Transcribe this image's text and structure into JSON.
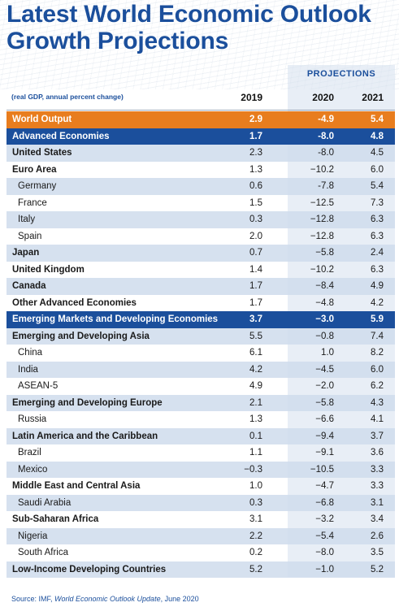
{
  "title_line1": "Latest World Economic Outlook",
  "title_line2": "Growth Projections",
  "projections_label": "PROJECTIONS",
  "note": "(real GDP, annual percent change)",
  "columns": [
    "2019",
    "2020",
    "2021"
  ],
  "rows": [
    {
      "label": "World Output",
      "v2019": "2.9",
      "v2020": "-4.9",
      "v2021": "5.4",
      "style": "orange"
    },
    {
      "label": "Advanced Economies",
      "v2019": "1.7",
      "v2020": "-8.0",
      "v2021": "4.8",
      "style": "navy"
    },
    {
      "label": "United States",
      "v2019": "2.3",
      "v2020": "-8.0",
      "v2021": "4.5",
      "style": "group-alt"
    },
    {
      "label": "Euro Area",
      "v2019": "1.3",
      "v2020": "−10.2",
      "v2021": "6.0",
      "style": "group-white"
    },
    {
      "label": "Germany",
      "v2019": "0.6",
      "v2020": "-7.8",
      "v2021": "5.4",
      "style": "sub-alt"
    },
    {
      "label": "France",
      "v2019": "1.5",
      "v2020": "−12.5",
      "v2021": "7.3",
      "style": "sub-white"
    },
    {
      "label": "Italy",
      "v2019": "0.3",
      "v2020": "−12.8",
      "v2021": "6.3",
      "style": "sub-alt"
    },
    {
      "label": "Spain",
      "v2019": "2.0",
      "v2020": "−12.8",
      "v2021": "6.3",
      "style": "sub-white"
    },
    {
      "label": "Japan",
      "v2019": "0.7",
      "v2020": "−5.8",
      "v2021": "2.4",
      "style": "group-alt"
    },
    {
      "label": "United Kingdom",
      "v2019": "1.4",
      "v2020": "−10.2",
      "v2021": "6.3",
      "style": "group-white"
    },
    {
      "label": "Canada",
      "v2019": "1.7",
      "v2020": "−8.4",
      "v2021": "4.9",
      "style": "group-alt"
    },
    {
      "label": "Other Advanced Economies",
      "v2019": "1.7",
      "v2020": "−4.8",
      "v2021": "4.2",
      "style": "group-white"
    },
    {
      "label": "Emerging Markets and Developing Economies",
      "v2019": "3.7",
      "v2020": "−3.0",
      "v2021": "5.9",
      "style": "navy"
    },
    {
      "label": "Emerging and Developing Asia",
      "v2019": "5.5",
      "v2020": "−0.8",
      "v2021": "7.4",
      "style": "group-alt"
    },
    {
      "label": "China",
      "v2019": "6.1",
      "v2020": "1.0",
      "v2021": "8.2",
      "style": "sub-white"
    },
    {
      "label": "India",
      "v2019": "4.2",
      "v2020": "−4.5",
      "v2021": "6.0",
      "style": "sub-alt"
    },
    {
      "label": "ASEAN-5",
      "v2019": "4.9",
      "v2020": "−2.0",
      "v2021": "6.2",
      "style": "sub-white"
    },
    {
      "label": "Emerging and Developing Europe",
      "v2019": "2.1",
      "v2020": "−5.8",
      "v2021": "4.3",
      "style": "group-alt"
    },
    {
      "label": "Russia",
      "v2019": "1.3",
      "v2020": "−6.6",
      "v2021": "4.1",
      "style": "sub-white"
    },
    {
      "label": "Latin America and the Caribbean",
      "v2019": "0.1",
      "v2020": "−9.4",
      "v2021": "3.7",
      "style": "group-alt"
    },
    {
      "label": "Brazil",
      "v2019": "1.1",
      "v2020": "−9.1",
      "v2021": "3.6",
      "style": "sub-white"
    },
    {
      "label": "Mexico",
      "v2019": "−0.3",
      "v2020": "−10.5",
      "v2021": "3.3",
      "style": "sub-alt"
    },
    {
      "label": "Middle East and Central Asia",
      "v2019": "1.0",
      "v2020": "−4.7",
      "v2021": "3.3",
      "style": "group-white"
    },
    {
      "label": "Saudi Arabia",
      "v2019": "0.3",
      "v2020": "−6.8",
      "v2021": "3.1",
      "style": "sub-alt"
    },
    {
      "label": "Sub-Saharan Africa",
      "v2019": "3.1",
      "v2020": "−3.2",
      "v2021": "3.4",
      "style": "group-white"
    },
    {
      "label": "Nigeria",
      "v2019": "2.2",
      "v2020": "−5.4",
      "v2021": "2.6",
      "style": "sub-alt"
    },
    {
      "label": "South Africa",
      "v2019": "0.2",
      "v2020": "−8.0",
      "v2021": "3.5",
      "style": "sub-white"
    },
    {
      "label": "Low-Income Developing Countries",
      "v2019": "5.2",
      "v2020": "−1.0",
      "v2021": "5.2",
      "style": "group-alt"
    }
  ],
  "source_prefix": "Source: IMF, ",
  "source_italic": "World Economic Outlook Update",
  "source_suffix": ", June 2020",
  "colors": {
    "title_blue": "#1b4f9c",
    "highlight_orange": "#e87d1e",
    "highlight_navy": "#1b4f9c",
    "row_alt": "#cfdcec"
  }
}
